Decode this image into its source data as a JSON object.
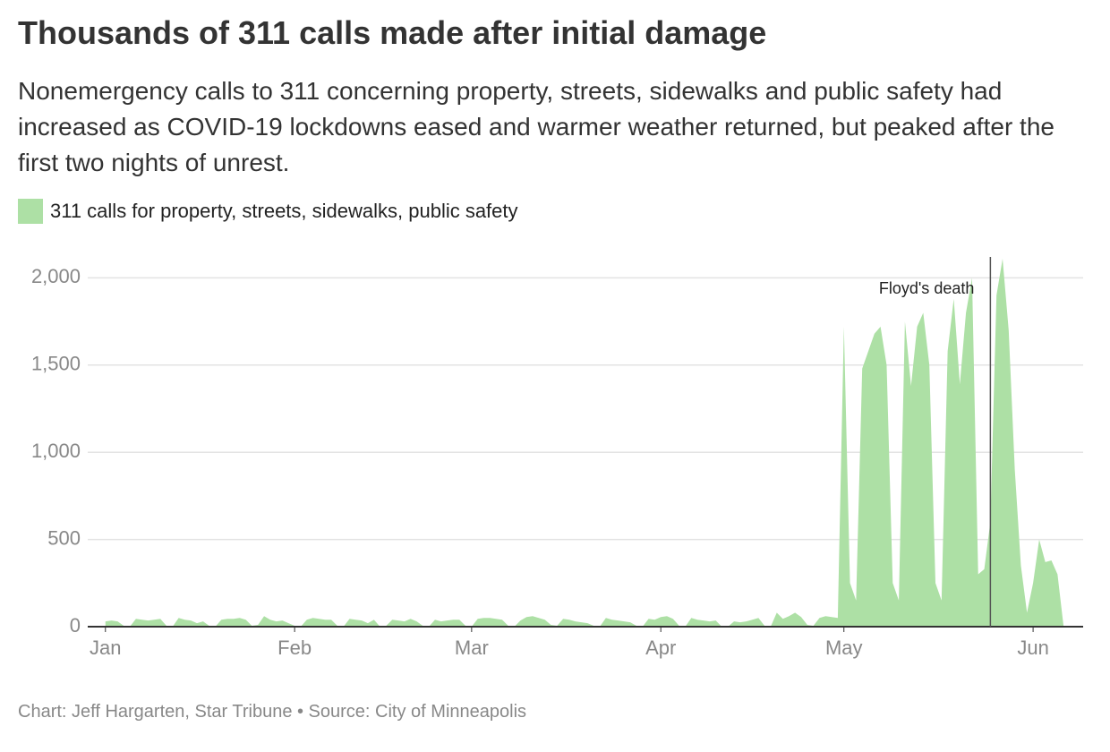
{
  "chart_data": {
    "type": "area",
    "title": "Thousands of 311 calls made after initial damage",
    "subtitle": "Nonemergency calls to 311 concerning property, streets, sidewalks and public safety had increased as COVID-19 lockdowns eased and warmer weather returned, but peaked after the first two nights of unrest.",
    "source": "Chart: Jeff Hargarten, Star Tribune • Source: City of Minneapolis",
    "x": [
      0,
      1,
      2,
      3,
      4,
      5,
      6,
      7,
      8,
      9,
      10,
      11,
      12,
      13,
      14,
      15,
      16,
      17,
      18,
      19,
      20,
      21,
      22,
      23,
      24,
      25,
      26,
      27,
      28,
      29,
      30,
      31,
      32,
      33,
      34,
      35,
      36,
      37,
      38,
      39,
      40,
      41,
      42,
      43,
      44,
      45,
      46,
      47,
      48,
      49,
      50,
      51,
      52,
      53,
      54,
      55,
      56,
      57,
      58,
      59,
      60,
      61,
      62,
      63,
      64,
      65,
      66,
      67,
      68,
      69,
      70,
      71,
      72,
      73,
      74,
      75,
      76,
      77,
      78,
      79,
      80,
      81,
      82,
      83,
      84,
      85,
      86,
      87,
      88,
      89,
      90,
      91,
      92,
      93,
      94,
      95,
      96,
      97,
      98,
      99,
      100,
      101,
      102,
      103,
      104,
      105,
      106,
      107,
      108,
      109,
      110,
      111,
      112,
      113,
      114,
      115,
      116,
      117,
      118,
      119,
      120,
      121,
      122,
      123,
      124,
      125,
      126,
      127,
      128,
      129,
      130,
      131,
      132,
      133,
      134,
      135,
      136,
      137,
      138,
      139,
      140,
      141,
      142,
      143,
      144,
      145,
      146,
      147,
      148,
      149,
      150,
      151,
      152,
      153,
      154,
      155,
      156,
      157
    ],
    "series": [
      {
        "name": "311 calls for property, streets, sidewalks, public safety",
        "color": "#ade0a5",
        "values": [
          30,
          35,
          30,
          5,
          0,
          45,
          40,
          35,
          40,
          45,
          5,
          0,
          50,
          40,
          35,
          20,
          30,
          5,
          0,
          40,
          45,
          45,
          50,
          40,
          5,
          10,
          60,
          40,
          30,
          35,
          20,
          5,
          0,
          40,
          50,
          45,
          40,
          40,
          5,
          0,
          45,
          40,
          35,
          20,
          40,
          0,
          5,
          40,
          35,
          30,
          45,
          30,
          5,
          0,
          40,
          30,
          35,
          40,
          40,
          5,
          0,
          45,
          50,
          50,
          45,
          40,
          5,
          0,
          35,
          55,
          60,
          50,
          40,
          10,
          5,
          45,
          40,
          30,
          25,
          20,
          5,
          0,
          50,
          40,
          35,
          30,
          25,
          5,
          0,
          45,
          40,
          55,
          60,
          45,
          5,
          0,
          50,
          40,
          35,
          30,
          35,
          0,
          0,
          30,
          25,
          30,
          40,
          50,
          5,
          0,
          80,
          45,
          60,
          80,
          55,
          10,
          5,
          50,
          60,
          55,
          50,
          1720,
          250,
          150,
          1480,
          1580,
          1680,
          1720,
          1500,
          250,
          150,
          1750,
          1380,
          1720,
          1800,
          1500,
          250,
          150,
          1580,
          1880,
          1390,
          1800,
          2000,
          300,
          330,
          600,
          1900,
          2110,
          1700,
          900,
          350,
          80,
          250,
          500,
          370,
          380,
          300,
          0
        ]
      }
    ],
    "xlim": [
      -2.9,
      160.2
    ],
    "xticks": [
      {
        "value": 0,
        "label": "Jan"
      },
      {
        "value": 31,
        "label": "Feb"
      },
      {
        "value": 60,
        "label": "Mar"
      },
      {
        "value": 91,
        "label": "Apr"
      },
      {
        "value": 121,
        "label": "May"
      },
      {
        "value": 152,
        "label": "Jun"
      }
    ],
    "ylim": [
      0,
      2120
    ],
    "yticks": [
      0,
      500,
      {
        "value": 1000,
        "label": "1,000"
      },
      {
        "value": 1500,
        "label": "1,500"
      },
      {
        "value": 2000,
        "label": "2,000"
      }
    ],
    "grid": true,
    "annotations": [
      {
        "x": 145,
        "text": "Floyd's death"
      }
    ]
  }
}
